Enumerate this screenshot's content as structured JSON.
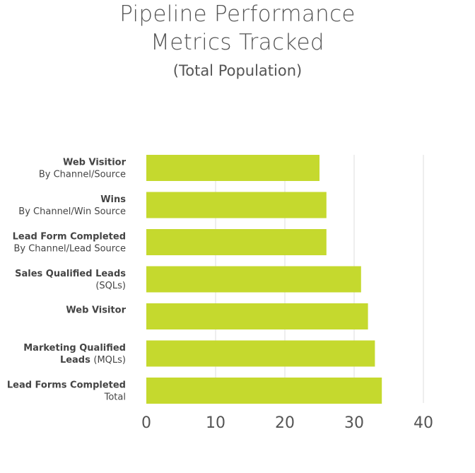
{
  "title_line1": "Pipeline Performance",
  "title_line2": "Metrics Tracked",
  "subtitle": "(Total Population)",
  "chart_data": {
    "type": "bar",
    "orientation": "horizontal",
    "title": "Pipeline Performance Metrics Tracked",
    "subtitle": "(Total Population)",
    "xlim": [
      0,
      40
    ],
    "x_ticks": [
      "0",
      "10",
      "20",
      "30",
      "40"
    ],
    "grid": "vertical",
    "bar_color": "#C5D92E",
    "categories": [
      {
        "bold": "Web Visitior",
        "regular": "By Channel/Source",
        "value": 25
      },
      {
        "bold": "Wins",
        "regular": "By Channel/Win Source",
        "value": 26
      },
      {
        "bold": "Lead Form Completed",
        "regular": "By Channel/Lead Source",
        "value": 26
      },
      {
        "bold": "Sales Qualified Leads",
        "regular": "(SQLs)",
        "value": 31
      },
      {
        "bold": "Web Visitor",
        "regular": "",
        "value": 32
      },
      {
        "bold": "Marketing Qualified",
        "bold2": "Leads",
        "regular2": "(MQLs)",
        "value": 33
      },
      {
        "bold": "Lead Forms Completed",
        "regular": "Total",
        "value": 34
      }
    ]
  }
}
